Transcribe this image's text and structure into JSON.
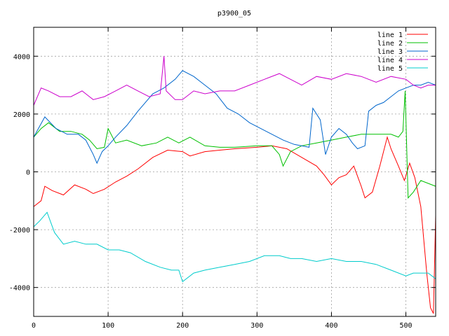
{
  "chart_data": {
    "type": "line",
    "title": "p3900_05",
    "xlabel": "",
    "ylabel": "",
    "xlim": [
      0,
      540
    ],
    "ylim": [
      -5000,
      5000
    ],
    "xticks": [
      0,
      100,
      200,
      300,
      400,
      500
    ],
    "yticks": [
      -4000,
      -2000,
      0,
      2000,
      4000
    ],
    "grid": true,
    "legend_position": "top-right",
    "series": [
      {
        "name": "line 1",
        "color": "#ff0000",
        "points": [
          [
            0,
            -1200
          ],
          [
            10,
            -1000
          ],
          [
            15,
            -500
          ],
          [
            25,
            -650
          ],
          [
            40,
            -800
          ],
          [
            55,
            -450
          ],
          [
            70,
            -600
          ],
          [
            80,
            -750
          ],
          [
            95,
            -600
          ],
          [
            110,
            -350
          ],
          [
            125,
            -150
          ],
          [
            140,
            100
          ],
          [
            160,
            500
          ],
          [
            180,
            750
          ],
          [
            200,
            700
          ],
          [
            210,
            550
          ],
          [
            230,
            700
          ],
          [
            250,
            750
          ],
          [
            270,
            800
          ],
          [
            300,
            850
          ],
          [
            320,
            900
          ],
          [
            340,
            800
          ],
          [
            360,
            500
          ],
          [
            380,
            200
          ],
          [
            390,
            -100
          ],
          [
            400,
            -450
          ],
          [
            410,
            -200
          ],
          [
            420,
            -100
          ],
          [
            430,
            200
          ],
          [
            440,
            -500
          ],
          [
            445,
            -900
          ],
          [
            455,
            -700
          ],
          [
            465,
            200
          ],
          [
            475,
            1200
          ],
          [
            480,
            800
          ],
          [
            490,
            200
          ],
          [
            498,
            -300
          ],
          [
            505,
            300
          ],
          [
            512,
            -200
          ],
          [
            520,
            -1200
          ],
          [
            528,
            -3500
          ],
          [
            533,
            -4700
          ],
          [
            537,
            -4900
          ],
          [
            540,
            -1500
          ]
        ]
      },
      {
        "name": "line 2",
        "color": "#00c000",
        "points": [
          [
            0,
            1200
          ],
          [
            10,
            1500
          ],
          [
            20,
            1700
          ],
          [
            35,
            1400
          ],
          [
            50,
            1400
          ],
          [
            65,
            1300
          ],
          [
            75,
            1100
          ],
          [
            85,
            800
          ],
          [
            95,
            850
          ],
          [
            100,
            1500
          ],
          [
            110,
            1000
          ],
          [
            125,
            1100
          ],
          [
            145,
            900
          ],
          [
            165,
            1000
          ],
          [
            180,
            1200
          ],
          [
            195,
            1000
          ],
          [
            210,
            1200
          ],
          [
            230,
            900
          ],
          [
            250,
            850
          ],
          [
            270,
            850
          ],
          [
            300,
            900
          ],
          [
            320,
            900
          ],
          [
            330,
            600
          ],
          [
            335,
            200
          ],
          [
            345,
            700
          ],
          [
            360,
            900
          ],
          [
            380,
            1000
          ],
          [
            400,
            1100
          ],
          [
            420,
            1200
          ],
          [
            440,
            1300
          ],
          [
            460,
            1300
          ],
          [
            480,
            1300
          ],
          [
            490,
            1200
          ],
          [
            496,
            1400
          ],
          [
            499,
            2800
          ],
          [
            503,
            -900
          ],
          [
            510,
            -700
          ],
          [
            520,
            -300
          ],
          [
            530,
            -400
          ],
          [
            540,
            -500
          ]
        ]
      },
      {
        "name": "line 3",
        "color": "#0066cc",
        "points": [
          [
            0,
            1200
          ],
          [
            15,
            1900
          ],
          [
            30,
            1500
          ],
          [
            45,
            1300
          ],
          [
            60,
            1300
          ],
          [
            70,
            1100
          ],
          [
            80,
            600
          ],
          [
            85,
            300
          ],
          [
            92,
            700
          ],
          [
            100,
            900
          ],
          [
            110,
            1200
          ],
          [
            125,
            1600
          ],
          [
            140,
            2100
          ],
          [
            160,
            2700
          ],
          [
            175,
            2900
          ],
          [
            190,
            3200
          ],
          [
            200,
            3500
          ],
          [
            215,
            3300
          ],
          [
            230,
            3000
          ],
          [
            245,
            2700
          ],
          [
            260,
            2200
          ],
          [
            275,
            2000
          ],
          [
            290,
            1700
          ],
          [
            305,
            1500
          ],
          [
            320,
            1300
          ],
          [
            335,
            1100
          ],
          [
            350,
            950
          ],
          [
            370,
            850
          ],
          [
            375,
            2200
          ],
          [
            385,
            1800
          ],
          [
            392,
            600
          ],
          [
            400,
            1200
          ],
          [
            410,
            1500
          ],
          [
            420,
            1300
          ],
          [
            428,
            1000
          ],
          [
            435,
            800
          ],
          [
            445,
            900
          ],
          [
            450,
            2100
          ],
          [
            460,
            2300
          ],
          [
            470,
            2400
          ],
          [
            480,
            2600
          ],
          [
            490,
            2800
          ],
          [
            500,
            2900
          ],
          [
            510,
            3000
          ],
          [
            520,
            3000
          ],
          [
            530,
            3100
          ],
          [
            540,
            3000
          ]
        ]
      },
      {
        "name": "line 4",
        "color": "#cc00cc",
        "points": [
          [
            0,
            2300
          ],
          [
            10,
            2900
          ],
          [
            20,
            2800
          ],
          [
            35,
            2600
          ],
          [
            50,
            2600
          ],
          [
            65,
            2800
          ],
          [
            80,
            2500
          ],
          [
            95,
            2600
          ],
          [
            110,
            2800
          ],
          [
            125,
            3000
          ],
          [
            140,
            2800
          ],
          [
            155,
            2600
          ],
          [
            170,
            2700
          ],
          [
            175,
            4000
          ],
          [
            178,
            2800
          ],
          [
            190,
            2500
          ],
          [
            200,
            2500
          ],
          [
            215,
            2800
          ],
          [
            230,
            2700
          ],
          [
            250,
            2800
          ],
          [
            270,
            2800
          ],
          [
            290,
            3000
          ],
          [
            310,
            3200
          ],
          [
            330,
            3400
          ],
          [
            345,
            3200
          ],
          [
            360,
            3000
          ],
          [
            380,
            3300
          ],
          [
            400,
            3200
          ],
          [
            420,
            3400
          ],
          [
            440,
            3300
          ],
          [
            460,
            3100
          ],
          [
            480,
            3300
          ],
          [
            500,
            3200
          ],
          [
            510,
            3000
          ],
          [
            520,
            2900
          ],
          [
            530,
            3000
          ],
          [
            540,
            3000
          ]
        ]
      },
      {
        "name": "line 5",
        "color": "#00cccc",
        "points": [
          [
            0,
            -1900
          ],
          [
            8,
            -1700
          ],
          [
            18,
            -1400
          ],
          [
            28,
            -2100
          ],
          [
            40,
            -2500
          ],
          [
            55,
            -2400
          ],
          [
            70,
            -2500
          ],
          [
            85,
            -2500
          ],
          [
            100,
            -2700
          ],
          [
            115,
            -2700
          ],
          [
            130,
            -2800
          ],
          [
            150,
            -3100
          ],
          [
            170,
            -3300
          ],
          [
            185,
            -3400
          ],
          [
            195,
            -3400
          ],
          [
            200,
            -3800
          ],
          [
            215,
            -3500
          ],
          [
            230,
            -3400
          ],
          [
            250,
            -3300
          ],
          [
            270,
            -3200
          ],
          [
            290,
            -3100
          ],
          [
            310,
            -2900
          ],
          [
            330,
            -2900
          ],
          [
            345,
            -3000
          ],
          [
            360,
            -3000
          ],
          [
            380,
            -3100
          ],
          [
            400,
            -3000
          ],
          [
            420,
            -3100
          ],
          [
            440,
            -3100
          ],
          [
            460,
            -3200
          ],
          [
            480,
            -3400
          ],
          [
            500,
            -3600
          ],
          [
            510,
            -3500
          ],
          [
            520,
            -3500
          ],
          [
            530,
            -3500
          ],
          [
            540,
            -3700
          ]
        ]
      }
    ]
  }
}
